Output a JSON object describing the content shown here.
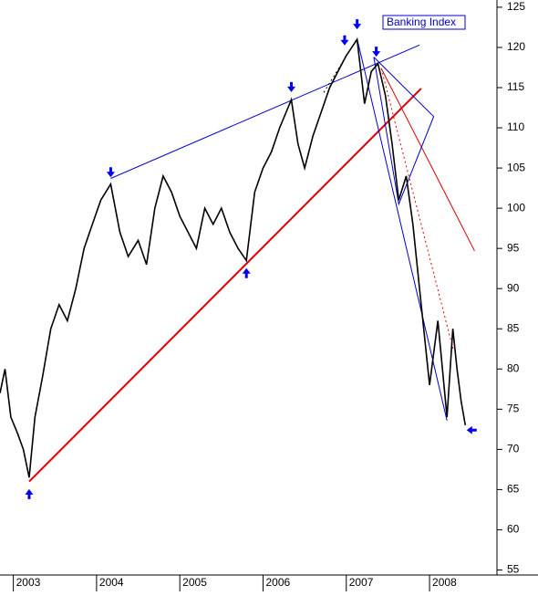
{
  "chart_data": {
    "type": "line",
    "x": [
      2002.84,
      2002.9,
      2002.97,
      2003.05,
      2003.12,
      2003.19,
      2003.26,
      2003.35,
      2003.45,
      2003.55,
      2003.65,
      2003.75,
      2003.85,
      2003.95,
      2004.05,
      2004.17,
      2004.28,
      2004.38,
      2004.5,
      2004.6,
      2004.7,
      2004.8,
      2004.9,
      2005.0,
      2005.1,
      2005.2,
      2005.3,
      2005.4,
      2005.5,
      2005.6,
      2005.7,
      2005.8,
      2005.9,
      2006.0,
      2006.1,
      2006.2,
      2006.34,
      2006.42,
      2006.5,
      2006.6,
      2006.7,
      2006.8,
      2006.9,
      2007.0,
      2007.13,
      2007.22,
      2007.3,
      2007.38,
      2007.47,
      2007.55,
      2007.63,
      2007.72,
      2007.8,
      2007.9,
      2008.0,
      2008.1,
      2008.21,
      2008.28,
      2008.33,
      2008.38,
      2008.43
    ],
    "series": [
      {
        "name": "Banking Index",
        "color": "#000000",
        "values": [
          77,
          80,
          74,
          72,
          70,
          66.5,
          74,
          79,
          85,
          88,
          86,
          90,
          95,
          98,
          101,
          103,
          97,
          94,
          96,
          93,
          100,
          104,
          102,
          99,
          97,
          95,
          100,
          98,
          100,
          97,
          95,
          93.5,
          102,
          105,
          107,
          110,
          113.5,
          108,
          105,
          109,
          112,
          115,
          117,
          119,
          121,
          113,
          117,
          118,
          114,
          108,
          101,
          104,
          98,
          88,
          78,
          86,
          74,
          85,
          80,
          76,
          73
        ]
      }
    ],
    "ylim": [
      54.6,
      125.9
    ],
    "yticks": [
      55,
      60,
      65,
      70,
      75,
      80,
      85,
      90,
      95,
      100,
      105,
      110,
      115,
      120,
      125
    ],
    "xlim": [
      2002.84,
      2008.81
    ],
    "xticks": [
      2003,
      2004,
      2005,
      2006,
      2007,
      2008
    ],
    "trendlines": [
      {
        "color": "#0000cc",
        "x": [
          2004.17,
          2007.88
        ],
        "y": [
          103.7,
          120.3
        ]
      },
      {
        "color": "#e00000",
        "x": [
          2003.19,
          2007.9
        ],
        "y": [
          66.0,
          114.9
        ]
      },
      {
        "color": "#e00000",
        "x": [
          2007.42,
          2008.54
        ],
        "y": [
          117.4,
          94.7
        ]
      },
      {
        "color": "#0000cc",
        "x": [
          2007.13,
          2008.21
        ],
        "y": [
          121.1,
          73.6
        ]
      },
      {
        "color": "#0000cc",
        "x": [
          2007.33,
          2008.05,
          2007.63,
          2007.33
        ],
        "y": [
          118.8,
          111.4,
          100.5,
          118.8
        ]
      }
    ],
    "dashed_lines": [
      {
        "color": "#e00000",
        "x": [
          2007.42,
          2008.29
        ],
        "y": [
          117.4,
          82.2
        ]
      },
      {
        "color": "#000000",
        "x": [
          2006.73,
          2007.13
        ],
        "y": [
          114.4,
          121.1
        ]
      }
    ],
    "arrows": [
      {
        "dir": "up",
        "x": 2003.19,
        "y": 64.6
      },
      {
        "dir": "down",
        "x": 2004.17,
        "y": 104.3
      },
      {
        "dir": "up",
        "x": 2005.8,
        "y": 92.1
      },
      {
        "dir": "down",
        "x": 2006.34,
        "y": 114.9
      },
      {
        "dir": "down",
        "x": 2006.98,
        "y": 120.7
      },
      {
        "dir": "down",
        "x": 2007.13,
        "y": 122.7
      },
      {
        "dir": "down",
        "x": 2007.36,
        "y": 119.3
      },
      {
        "dir": "left",
        "x": 2008.49,
        "y": 72.4
      }
    ],
    "arrow_color": "#0000ee",
    "legend": "top-right"
  }
}
